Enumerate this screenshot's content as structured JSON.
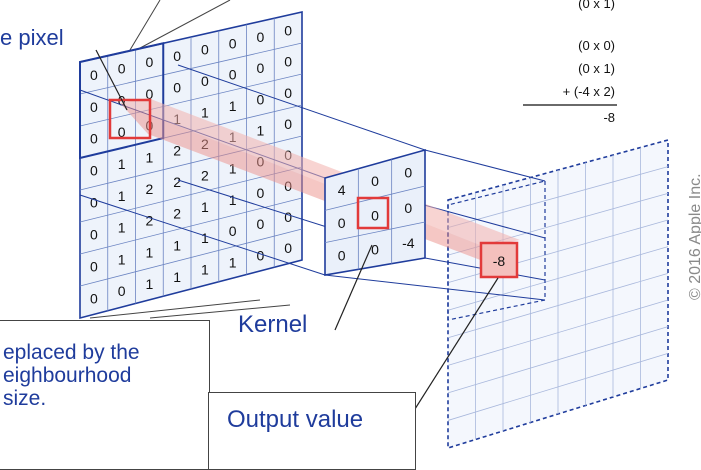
{
  "labels": {
    "source_pixel": "e pixel",
    "kernel": "Kernel",
    "output_value": "Output value"
  },
  "callout": {
    "line1": "eplaced by the",
    "line2": "eighbourhood",
    "line3": "size."
  },
  "copyright": "© 2016 Apple Inc.",
  "calculation": {
    "partial_top": "(0 x 1)",
    "lines": [
      "(0 x 0)",
      "(0 x 1)",
      "+ (-4 x 2)"
    ],
    "result": "-8"
  },
  "source_grid": [
    [
      "0",
      "0",
      "0",
      "0",
      "0",
      "0",
      "0",
      "0"
    ],
    [
      "0",
      "0",
      "0",
      "0",
      "0",
      "0",
      "0",
      "0"
    ],
    [
      "0",
      "0",
      "0",
      "1",
      "1",
      "1",
      "0",
      "0"
    ],
    [
      "0",
      "1",
      "1",
      "2",
      "2",
      "1",
      "1",
      "0"
    ],
    [
      "0",
      "1",
      "2",
      "2",
      "2",
      "1",
      "0",
      "0"
    ],
    [
      "0",
      "1",
      "2",
      "2",
      "1",
      "1",
      "0",
      "0"
    ],
    [
      "0",
      "1",
      "1",
      "1",
      "1",
      "0",
      "0",
      "0"
    ],
    [
      "0",
      "0",
      "1",
      "1",
      "1",
      "1",
      "0",
      "0"
    ]
  ],
  "kernel_grid": [
    [
      "4",
      "0",
      "0"
    ],
    [
      "0",
      "0",
      "0"
    ],
    [
      "0",
      "0",
      "-4"
    ]
  ],
  "output_value": "-8",
  "colors": {
    "blue": "#1f3c9c",
    "highlight": "#e23a3a",
    "beam": "#f2b0ad"
  }
}
